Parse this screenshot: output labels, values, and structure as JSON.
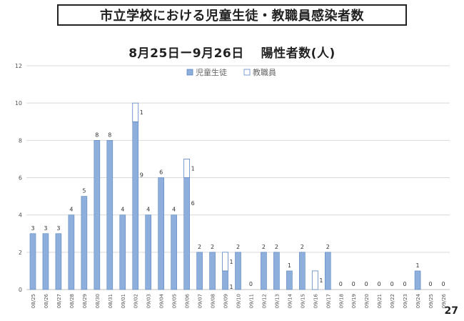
{
  "slide": {
    "title": "市立学校における児童生徒・教職員感染者数",
    "subtitle": "8月25日ー9月26日　 陽性者数(人)",
    "page_number": "27"
  },
  "colors": {
    "student": "#8eaedb",
    "student_stroke": "#5b85c0",
    "staff": "#ffffff",
    "staff_stroke": "#5b85c0",
    "grid": "#d9d9d9",
    "axis": "#bfbfbf"
  },
  "chart_data": {
    "type": "bar",
    "stacked": true,
    "categories": [
      "08/25",
      "08/26",
      "08/27",
      "08/28",
      "08/29",
      "08/30",
      "08/31",
      "09/01",
      "09/02",
      "09/03",
      "09/04",
      "09/05",
      "09/06",
      "09/07",
      "09/08",
      "09/09",
      "09/10",
      "09/11",
      "09/12",
      "09/13",
      "09/14",
      "09/15",
      "09/16",
      "09/17",
      "09/18",
      "09/19",
      "09/20",
      "09/21",
      "09/22",
      "09/23",
      "09/24",
      "09/25",
      "09/26"
    ],
    "series": [
      {
        "name": "児童生徒",
        "values": [
          3,
          3,
          3,
          4,
          5,
          8,
          8,
          4,
          9,
          4,
          6,
          4,
          6,
          2,
          2,
          1,
          2,
          0,
          2,
          2,
          1,
          2,
          0,
          2,
          0,
          0,
          0,
          0,
          0,
          0,
          1,
          0,
          0
        ]
      },
      {
        "name": "教職員",
        "values": [
          0,
          0,
          0,
          0,
          0,
          0,
          0,
          0,
          1,
          0,
          0,
          0,
          1,
          0,
          0,
          1,
          0,
          0,
          0,
          0,
          0,
          0,
          1,
          0,
          0,
          0,
          0,
          0,
          0,
          0,
          0,
          0,
          0
        ]
      }
    ],
    "data_labels": [
      [
        "3"
      ],
      [
        "3"
      ],
      [
        "3"
      ],
      [
        "4"
      ],
      [
        "5"
      ],
      [
        "8"
      ],
      [
        "8"
      ],
      [
        "4"
      ],
      [
        "9",
        "1"
      ],
      [
        "4"
      ],
      [
        "6"
      ],
      [
        "4"
      ],
      [
        "6",
        "1"
      ],
      [
        "2"
      ],
      [
        "2"
      ],
      [
        "1",
        "1"
      ],
      [
        "2"
      ],
      [
        "0"
      ],
      [
        "2"
      ],
      [
        "2"
      ],
      [
        "1"
      ],
      [
        "2"
      ],
      [
        "1"
      ],
      [
        "2"
      ],
      [
        "0"
      ],
      [
        "0"
      ],
      [
        "0"
      ],
      [
        "0"
      ],
      [
        "0"
      ],
      [
        "0"
      ],
      [
        "1"
      ],
      [
        "0"
      ],
      [
        "0"
      ]
    ],
    "y_ticks": [
      "0",
      "2",
      "4",
      "6",
      "8",
      "10",
      "12"
    ],
    "ylim": [
      0,
      12
    ],
    "grid": true,
    "legend_position": "top-center"
  }
}
